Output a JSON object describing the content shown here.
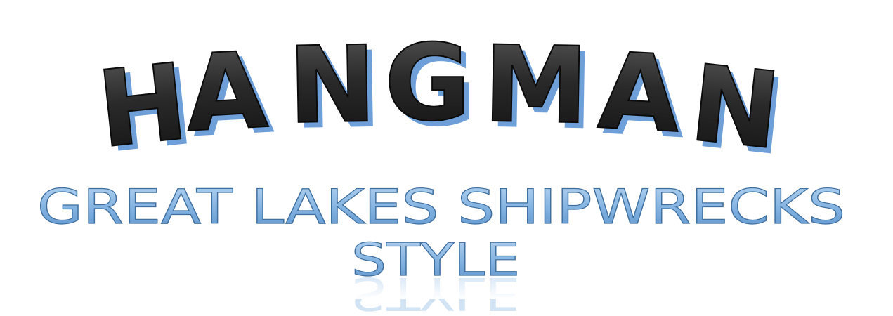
{
  "title": {
    "letters": [
      "H",
      "A",
      "N",
      "G",
      "M",
      "A",
      "N"
    ]
  },
  "subtitle": {
    "line1": "GREAT LAKES SHIPWRECKS",
    "line2": "STYLE"
  }
}
